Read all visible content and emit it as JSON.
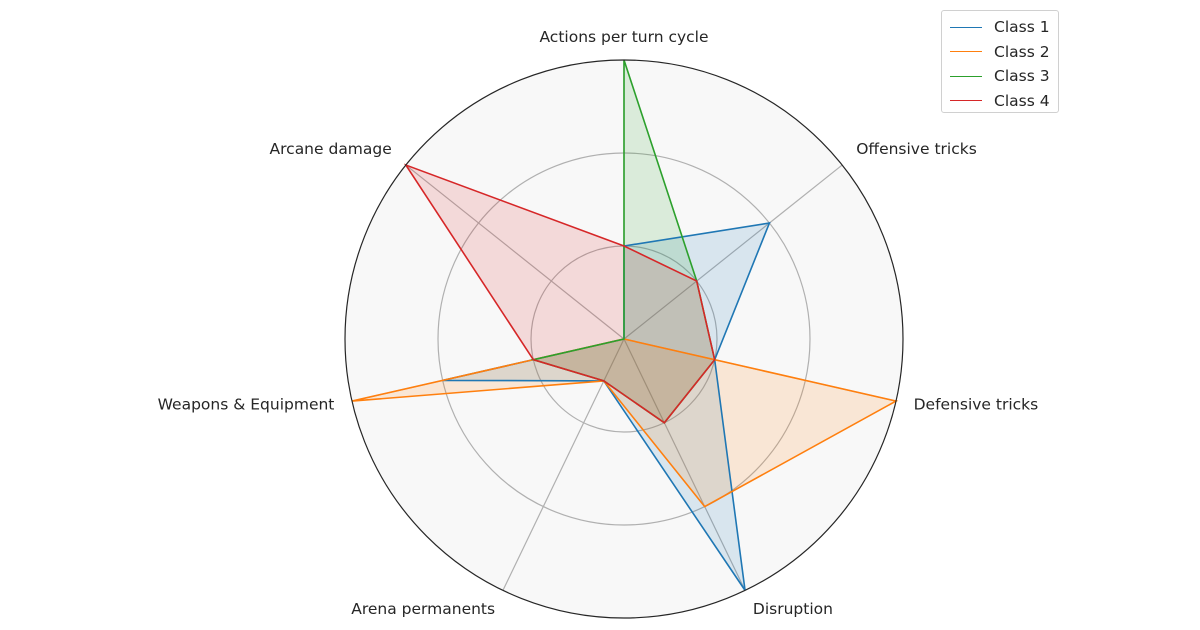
{
  "chart_data": {
    "type": "radar",
    "axes": [
      "Actions per turn cycle",
      "Offensive tricks",
      "Defensive tricks",
      "Disruption",
      "Arena permanents",
      "Weapons & Equipment",
      "Arcane damage"
    ],
    "rlim": [
      0,
      3
    ],
    "rings": [
      1,
      2,
      3
    ],
    "grid": true,
    "legend_position": "top-right",
    "series": [
      {
        "name": "Class 1",
        "color": "#1f77b4",
        "values": [
          1.0,
          2.0,
          1.0,
          3.0,
          0.5,
          2.0,
          0.0
        ]
      },
      {
        "name": "Class 2",
        "color": "#ff7f0e",
        "values": [
          0.0,
          0.0,
          3.0,
          2.0,
          0.5,
          3.0,
          0.0
        ]
      },
      {
        "name": "Class 3",
        "color": "#2ca02c",
        "values": [
          3.0,
          1.0,
          1.0,
          1.0,
          0.5,
          1.0,
          0.0
        ]
      },
      {
        "name": "Class 4",
        "color": "#d62728",
        "values": [
          1.0,
          1.0,
          1.0,
          1.0,
          0.5,
          1.0,
          3.0
        ]
      }
    ]
  }
}
